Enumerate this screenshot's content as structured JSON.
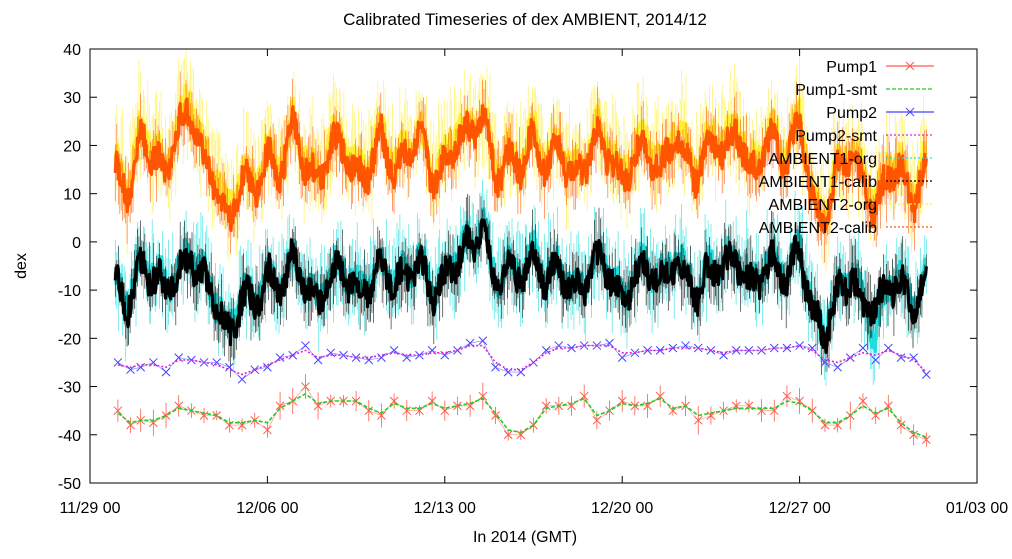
{
  "chart_data": {
    "type": "line",
    "title": "Calibrated Timeseries of dex AMBIENT, 2014/12",
    "xlabel": "In 2014 (GMT)",
    "ylabel": "dex",
    "x_tick_labels": [
      "11/29 00",
      "12/06 00",
      "12/13 00",
      "12/20 00",
      "12/27 00",
      "01/03 00"
    ],
    "x_tick_days": [
      0,
      7,
      14,
      21,
      28,
      35
    ],
    "ylim": [
      -50,
      40
    ],
    "y_ticks": [
      40,
      30,
      20,
      10,
      0,
      -10,
      -20,
      -30,
      -40,
      -50
    ],
    "grid": false,
    "legend_position": "top-right",
    "series": [
      {
        "name": "Pump1",
        "color": "#ff5a4a",
        "marker": "x",
        "errorbars": true,
        "x": [
          1.1,
          1.6,
          2.0,
          2.5,
          3.0,
          3.5,
          4.0,
          4.5,
          5.0,
          5.5,
          6.0,
          6.5,
          7.0,
          7.5,
          8.0,
          8.5,
          9.0,
          9.5,
          10.0,
          10.5,
          11.0,
          11.5,
          12.0,
          12.5,
          13.0,
          13.5,
          14.0,
          14.5,
          15.0,
          15.5,
          16.0,
          16.5,
          17.0,
          17.5,
          18.0,
          18.5,
          19.0,
          19.5,
          20.0,
          20.5,
          21.0,
          21.5,
          22.0,
          22.5,
          23.0,
          23.5,
          24.0,
          24.5,
          25.0,
          25.5,
          26.0,
          26.5,
          27.0,
          27.5,
          28.0,
          28.5,
          29.0,
          29.5,
          30.0,
          30.5,
          31.0,
          31.5,
          32.0,
          32.5,
          33.0
        ],
        "y": [
          -35,
          -38,
          -37,
          -37.5,
          -36,
          -34,
          -35,
          -36,
          -36,
          -38,
          -38,
          -37,
          -39,
          -34,
          -33,
          -30,
          -34,
          -33,
          -33,
          -33,
          -35,
          -36,
          -33,
          -35,
          -35,
          -33,
          -35,
          -34,
          -34,
          -32,
          -36,
          -40,
          -40,
          -38,
          -34,
          -34,
          -34,
          -32,
          -37,
          -35,
          -33,
          -34,
          -34,
          -32,
          -35,
          -34,
          -37,
          -36,
          -35,
          -34,
          -34,
          -35,
          -35,
          -32,
          -33,
          -35,
          -38,
          -38,
          -36,
          -33,
          -36,
          -34,
          -38,
          -40,
          -41
        ]
      },
      {
        "name": "Pump1-smt",
        "color": "#22cc22",
        "style": "dashed",
        "x": [
          1.1,
          1.6,
          2.0,
          2.5,
          3.0,
          3.5,
          4.0,
          4.5,
          5.0,
          5.5,
          6.0,
          6.5,
          7.0,
          7.5,
          8.0,
          8.5,
          9.0,
          9.5,
          10.0,
          10.5,
          11.0,
          11.5,
          12.0,
          12.5,
          13.0,
          13.5,
          14.0,
          14.5,
          15.0,
          15.5,
          16.0,
          16.5,
          17.0,
          17.5,
          18.0,
          18.5,
          19.0,
          19.5,
          20.0,
          20.5,
          21.0,
          21.5,
          22.0,
          22.5,
          23.0,
          23.5,
          24.0,
          24.5,
          25.0,
          25.5,
          26.0,
          26.5,
          27.0,
          27.5,
          28.0,
          28.5,
          29.0,
          29.5,
          30.0,
          30.5,
          31.0,
          31.5,
          32.0,
          32.5,
          33.0
        ],
        "y": [
          -35.5,
          -37.5,
          -37,
          -37,
          -36,
          -34.5,
          -35,
          -35.5,
          -36,
          -37.5,
          -37.5,
          -37,
          -37.5,
          -34.5,
          -33,
          -31.5,
          -33.5,
          -33,
          -33,
          -33,
          -34.5,
          -35.5,
          -33.5,
          -34.5,
          -34.5,
          -33.5,
          -34.5,
          -34,
          -33.5,
          -32.5,
          -35.5,
          -39,
          -39.5,
          -38,
          -34.5,
          -34,
          -33.5,
          -32.5,
          -36,
          -35,
          -33.5,
          -34,
          -33.5,
          -32.5,
          -34.5,
          -34,
          -36,
          -35.5,
          -35,
          -34.5,
          -34.5,
          -34.5,
          -34.5,
          -33,
          -33.5,
          -35,
          -37.5,
          -37.5,
          -36,
          -34,
          -35.5,
          -34.5,
          -37.5,
          -39.5,
          -40.5
        ]
      },
      {
        "name": "Pump2",
        "color": "#4444ff",
        "marker": "x",
        "x": [
          1.1,
          1.6,
          2.0,
          2.5,
          3.0,
          3.5,
          4.0,
          4.5,
          5.0,
          5.5,
          6.0,
          6.5,
          7.0,
          7.5,
          8.0,
          8.5,
          9.0,
          9.5,
          10.0,
          10.5,
          11.0,
          11.5,
          12.0,
          12.5,
          13.0,
          13.5,
          14.0,
          14.5,
          15.0,
          15.5,
          16.0,
          16.5,
          17.0,
          17.5,
          18.0,
          18.5,
          19.0,
          19.5,
          20.0,
          20.5,
          21.0,
          21.5,
          22.0,
          22.5,
          23.0,
          23.5,
          24.0,
          24.5,
          25.0,
          25.5,
          26.0,
          26.5,
          27.0,
          27.5,
          28.0,
          28.5,
          29.0,
          29.5,
          30.0,
          30.5,
          31.0,
          31.5,
          32.0,
          32.5,
          33.0
        ],
        "y": [
          -25,
          -26.5,
          -26,
          -25,
          -27,
          -24,
          -24.5,
          -25,
          -25,
          -26,
          -28.5,
          -26.5,
          -26,
          -24,
          -23.5,
          -21.5,
          -24.5,
          -23,
          -23.5,
          -24,
          -24.5,
          -24,
          -22.5,
          -24,
          -23.5,
          -22.5,
          -23.5,
          -22.5,
          -21,
          -20.5,
          -26,
          -27,
          -27,
          -25,
          -22.5,
          -21.5,
          -22,
          -21.5,
          -21.5,
          -21,
          -24,
          -23,
          -22.5,
          -22.5,
          -22,
          -21.5,
          -22,
          -22.5,
          -23.5,
          -22.5,
          -22.5,
          -22.5,
          -22,
          -22,
          -21.5,
          -22,
          -25,
          -26,
          -24,
          -22,
          -24.5,
          -22,
          -24,
          -24,
          -27.5
        ]
      },
      {
        "name": "Pump2-smt",
        "color": "#dd22dd",
        "style": "dotted",
        "x": [
          1.1,
          1.6,
          2.0,
          2.5,
          3.0,
          3.5,
          4.0,
          4.5,
          5.0,
          5.5,
          6.0,
          6.5,
          7.0,
          7.5,
          8.0,
          8.5,
          9.0,
          9.5,
          10.0,
          10.5,
          11.0,
          11.5,
          12.0,
          12.5,
          13.0,
          13.5,
          14.0,
          14.5,
          15.0,
          15.5,
          16.0,
          16.5,
          17.0,
          17.5,
          18.0,
          18.5,
          19.0,
          19.5,
          20.0,
          20.5,
          21.0,
          21.5,
          22.0,
          22.5,
          23.0,
          23.5,
          24.0,
          24.5,
          25.0,
          25.5,
          26.0,
          26.5,
          27.0,
          27.5,
          28.0,
          28.5,
          29.0,
          29.5,
          30.0,
          30.5,
          31.0,
          31.5,
          32.0,
          32.5,
          33.0
        ],
        "y": [
          -25.5,
          -26,
          -25.5,
          -25.5,
          -26,
          -24.5,
          -24.5,
          -25,
          -25.5,
          -26.5,
          -27.5,
          -26.5,
          -25.5,
          -24.5,
          -23.5,
          -22.5,
          -24,
          -23.5,
          -23.5,
          -24,
          -24,
          -23.5,
          -23,
          -23.5,
          -23.5,
          -23,
          -23,
          -22.5,
          -21.5,
          -21.5,
          -25,
          -26.5,
          -26.5,
          -25,
          -23,
          -22,
          -22,
          -21.5,
          -21.5,
          -21.5,
          -23,
          -23,
          -22.5,
          -22.5,
          -22,
          -22,
          -22,
          -22.5,
          -23,
          -22.5,
          -22.5,
          -22.5,
          -22,
          -22,
          -21.5,
          -22.5,
          -24.5,
          -25,
          -24,
          -23,
          -23.5,
          -22.5,
          -23.5,
          -24.5,
          -27
        ]
      },
      {
        "name": "AMBIENT1-org",
        "color": "#22dddd",
        "style": "dense",
        "x": [
          1.0,
          1.5,
          2.0,
          2.5,
          3.0,
          3.5,
          4.0,
          4.5,
          5.0,
          5.5,
          6.0,
          6.5,
          7.0,
          7.5,
          8.0,
          8.5,
          9.0,
          9.5,
          10.0,
          10.5,
          11.0,
          11.5,
          12.0,
          12.5,
          13.0,
          13.5,
          14.0,
          14.5,
          15.0,
          15.5,
          16.0,
          16.5,
          17.0,
          17.5,
          18.0,
          18.5,
          19.0,
          19.5,
          20.0,
          20.5,
          21.0,
          21.5,
          22.0,
          22.5,
          23.0,
          23.5,
          24.0,
          24.5,
          25.0,
          25.5,
          26.0,
          26.5,
          27.0,
          27.5,
          28.0,
          28.5,
          29.0,
          29.5,
          30.0,
          30.5,
          31.0,
          31.5,
          32.0,
          32.5,
          33.0
        ],
        "y": [
          -8,
          -12,
          -4,
          -6,
          -9,
          -5,
          -2,
          -7,
          -12,
          -18,
          -10,
          -12,
          -6,
          -9,
          -3,
          -8,
          -12,
          -6,
          -5,
          -10,
          -8,
          -4,
          -8,
          -6,
          -3,
          -10,
          -7,
          -2,
          0,
          4,
          -8,
          -5,
          -6,
          -2,
          -7,
          -4,
          -10,
          -8,
          -3,
          -5,
          -12,
          -6,
          -4,
          -8,
          -3,
          -6,
          -10,
          -4,
          -5,
          -2,
          -8,
          -6,
          -3,
          -7,
          0,
          -14,
          -18,
          -10,
          -6,
          -12,
          -20,
          -8,
          -8,
          -12,
          -8
        ],
        "yerr": 7
      },
      {
        "name": "AMBIENT1-calib",
        "color": "#000000",
        "style": "dense",
        "x": [
          1.0,
          1.5,
          2.0,
          2.5,
          3.0,
          3.5,
          4.0,
          4.5,
          5.0,
          5.5,
          6.0,
          6.5,
          7.0,
          7.5,
          8.0,
          8.5,
          9.0,
          9.5,
          10.0,
          10.5,
          11.0,
          11.5,
          12.0,
          12.5,
          13.0,
          13.5,
          14.0,
          14.5,
          15.0,
          15.5,
          16.0,
          16.5,
          17.0,
          17.5,
          18.0,
          18.5,
          19.0,
          19.5,
          20.0,
          20.5,
          21.0,
          21.5,
          22.0,
          22.5,
          23.0,
          23.5,
          24.0,
          24.5,
          25.0,
          25.5,
          26.0,
          26.5,
          27.0,
          27.5,
          28.0,
          28.5,
          29.0,
          29.5,
          30.0,
          30.5,
          31.0,
          31.5,
          32.0,
          32.5,
          33.0
        ],
        "y": [
          -9,
          -13,
          -5,
          -7,
          -10,
          -6,
          -3,
          -8,
          -13,
          -20,
          -11,
          -13,
          -7,
          -10,
          -4,
          -9,
          -13,
          -7,
          -6,
          -11,
          -9,
          -5,
          -9,
          -7,
          -4,
          -11,
          -8,
          -3,
          -1,
          3,
          -9,
          -6,
          -7,
          -3,
          -8,
          -5,
          -11,
          -9,
          -4,
          -6,
          -13,
          -7,
          -5,
          -9,
          -4,
          -7,
          -11,
          -5,
          -6,
          -3,
          -9,
          -7,
          -4,
          -8,
          -1,
          -15,
          -19,
          -11,
          -7,
          -13,
          -14,
          -9,
          -9,
          -13,
          -9
        ],
        "yerr": 5
      },
      {
        "name": "AMBIENT2-org",
        "color": "#ffee33",
        "style": "dense",
        "x": [
          1.0,
          1.5,
          2.0,
          2.5,
          3.0,
          3.5,
          4.0,
          4.5,
          5.0,
          5.5,
          6.0,
          6.5,
          7.0,
          7.5,
          8.0,
          8.5,
          9.0,
          9.5,
          10.0,
          10.5,
          11.0,
          11.5,
          12.0,
          12.5,
          13.0,
          13.5,
          14.0,
          14.5,
          15.0,
          15.5,
          16.0,
          16.5,
          17.0,
          17.5,
          18.0,
          18.5,
          19.0,
          19.5,
          20.0,
          20.5,
          21.0,
          21.5,
          22.0,
          22.5,
          23.0,
          23.5,
          24.0,
          24.5,
          25.0,
          25.5,
          26.0,
          26.5,
          27.0,
          27.5,
          28.0,
          28.5,
          29.0,
          29.5,
          30.0,
          30.5,
          31.0,
          31.5,
          32.0,
          32.5,
          33.0
        ],
        "y": [
          17,
          12,
          24,
          20,
          16,
          26,
          30,
          18,
          14,
          6,
          16,
          12,
          20,
          16,
          26,
          18,
          14,
          22,
          22,
          15,
          17,
          24,
          16,
          20,
          24,
          15,
          18,
          24,
          24,
          28,
          15,
          19,
          18,
          24,
          17,
          22,
          15,
          18,
          24,
          20,
          14,
          20,
          22,
          16,
          24,
          20,
          15,
          24,
          20,
          26,
          16,
          20,
          24,
          18,
          27,
          10,
          6,
          16,
          20,
          14,
          8,
          17,
          16,
          10,
          18
        ],
        "yerr": 8
      },
      {
        "name": "AMBIENT2-calib",
        "color": "#ff5500",
        "style": "dense",
        "x": [
          1.0,
          1.5,
          2.0,
          2.5,
          3.0,
          3.5,
          4.0,
          4.5,
          5.0,
          5.5,
          6.0,
          6.5,
          7.0,
          7.5,
          8.0,
          8.5,
          9.0,
          9.5,
          10.0,
          10.5,
          11.0,
          11.5,
          12.0,
          12.5,
          13.0,
          13.5,
          14.0,
          14.5,
          15.0,
          15.5,
          16.0,
          16.5,
          17.0,
          17.5,
          18.0,
          18.5,
          19.0,
          19.5,
          20.0,
          20.5,
          21.0,
          21.5,
          22.0,
          22.5,
          23.0,
          23.5,
          24.0,
          24.5,
          25.0,
          25.5,
          26.0,
          26.5,
          27.0,
          27.5,
          28.0,
          28.5,
          29.0,
          29.5,
          30.0,
          30.5,
          31.0,
          31.5,
          32.0,
          32.5,
          33.0
        ],
        "y": [
          15,
          10,
          22,
          18,
          14,
          24,
          27,
          16,
          12,
          3,
          14,
          10,
          18,
          14,
          24,
          16,
          12,
          20,
          20,
          13,
          15,
          22,
          14,
          18,
          22,
          13,
          16,
          22,
          22,
          26,
          13,
          17,
          16,
          22,
          15,
          20,
          13,
          16,
          22,
          18,
          12,
          18,
          20,
          14,
          22,
          18,
          13,
          22,
          18,
          24,
          14,
          18,
          22,
          16,
          25,
          8,
          4,
          14,
          18,
          12,
          6,
          15,
          14,
          8,
          16
        ],
        "yerr": 5
      }
    ]
  }
}
